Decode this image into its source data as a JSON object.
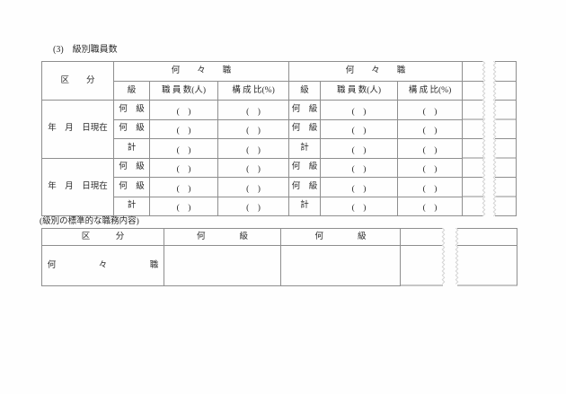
{
  "page": {
    "section_title": "(3)　級別職員数",
    "duties_caption": "(級別の標準的な職務内容)"
  },
  "staff_table": {
    "kubun_header": "区　　分",
    "job_header": "何　　々　　職",
    "grade_header": "級",
    "staff_count_header": "職 員 数(人)",
    "ratio_header": "構 成 比(%)",
    "paren_placeholder": "(　)",
    "blocks": [
      {
        "date_label": "年　月　日現在",
        "rows": [
          {
            "grade": "何　級"
          },
          {
            "grade": "何　級"
          },
          {
            "grade": "計"
          }
        ]
      },
      {
        "date_label": "年　月　日現在",
        "rows": [
          {
            "grade": "何　級"
          },
          {
            "grade": "何　級"
          },
          {
            "grade": "計"
          }
        ]
      }
    ]
  },
  "duties_table": {
    "kubun_header": "区　　　分",
    "grade_header_1": "何　　　　級",
    "grade_header_2": "何　　　　級",
    "row_label": "何　　　　　々　　　　　職"
  }
}
